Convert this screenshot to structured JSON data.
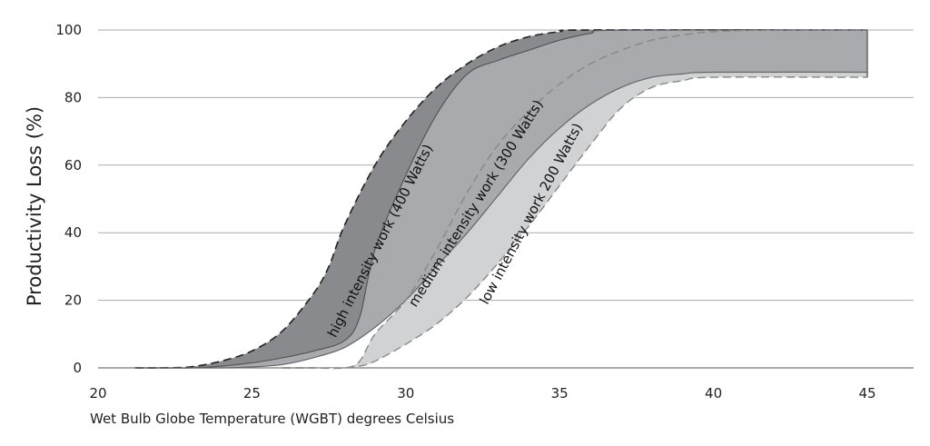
{
  "chart_data": {
    "type": "area",
    "xlabel": "Wet Bulb Globe Temperature (WGBT) degrees Celsius",
    "ylabel": "Productivity Loss (%)",
    "xlim": [
      20,
      46.5
    ],
    "ylim": [
      0,
      100
    ],
    "xticks": [
      {
        "value": 20,
        "label": "20"
      },
      {
        "value": 25,
        "label": "25"
      },
      {
        "value": 30,
        "label": "30"
      },
      {
        "value": 35,
        "label": "35"
      },
      {
        "value": 40,
        "label": "40"
      },
      {
        "value": 45,
        "label": "45"
      }
    ],
    "yticks": [
      {
        "value": 0,
        "label": "0"
      },
      {
        "value": 20,
        "label": "20"
      },
      {
        "value": 40,
        "label": "40"
      },
      {
        "value": 60,
        "label": "60"
      },
      {
        "value": 80,
        "label": "80"
      },
      {
        "value": 100,
        "label": "100"
      }
    ],
    "grid": "horizontal",
    "bands": [
      {
        "name": "high intensity work (400 Watts)",
        "fill": "#888a8d",
        "upper": [
          [
            21.2,
            0
          ],
          [
            22,
            0
          ],
          [
            23,
            0.3
          ],
          [
            24,
            2
          ],
          [
            25,
            5
          ],
          [
            26,
            11
          ],
          [
            27,
            22
          ],
          [
            27.5,
            30
          ],
          [
            28,
            42
          ],
          [
            29,
            60
          ],
          [
            30,
            73
          ],
          [
            31,
            83
          ],
          [
            32,
            90
          ],
          [
            33,
            95
          ],
          [
            34,
            98
          ],
          [
            35,
            99.5
          ],
          [
            36,
            100
          ],
          [
            45,
            100
          ]
        ],
        "lower": [
          [
            21.2,
            0
          ],
          [
            22,
            0
          ],
          [
            23,
            0
          ],
          [
            24,
            0.5
          ],
          [
            25,
            1.5
          ],
          [
            26,
            3
          ],
          [
            27,
            5
          ],
          [
            28,
            8
          ],
          [
            28.5,
            15
          ],
          [
            29,
            35
          ],
          [
            30,
            57
          ],
          [
            31,
            75
          ],
          [
            32,
            87
          ],
          [
            33,
            91
          ],
          [
            34,
            94
          ],
          [
            35,
            97
          ],
          [
            36,
            99
          ],
          [
            37,
            100
          ],
          [
            45,
            100
          ]
        ],
        "label_pos": {
          "x": 29.3,
          "y": 37
        },
        "label_angle": -63
      },
      {
        "name": "medium intensity work (300 Watts)",
        "fill": "#a8aaad",
        "upper": [
          [
            22,
            0
          ],
          [
            23,
            0
          ],
          [
            24,
            0.5
          ],
          [
            25,
            1.5
          ],
          [
            26,
            3
          ],
          [
            27,
            5
          ],
          [
            28,
            8
          ],
          [
            28.5,
            15
          ],
          [
            29,
            35
          ],
          [
            30,
            57
          ],
          [
            31,
            75
          ],
          [
            32,
            87
          ],
          [
            33,
            91
          ],
          [
            34,
            94
          ],
          [
            35,
            97
          ],
          [
            36,
            99
          ],
          [
            37,
            100
          ],
          [
            45,
            100
          ]
        ],
        "lower": [
          [
            22,
            0
          ],
          [
            23,
            0
          ],
          [
            24,
            0
          ],
          [
            25,
            0.3
          ],
          [
            26,
            1
          ],
          [
            27,
            3
          ],
          [
            28,
            6
          ],
          [
            29,
            12
          ],
          [
            30,
            20
          ],
          [
            31,
            30
          ],
          [
            32,
            40
          ],
          [
            33,
            51
          ],
          [
            34,
            62
          ],
          [
            35,
            71
          ],
          [
            36,
            78
          ],
          [
            37,
            83
          ],
          [
            38,
            86
          ],
          [
            39,
            87
          ],
          [
            40,
            87.5
          ],
          [
            45,
            87.5
          ]
        ],
        "label_pos": {
          "x": 32.4,
          "y": 48
        },
        "label_angle": -58
      },
      {
        "name": "low intensity work 200 Watts)",
        "fill": "#d0d2d4",
        "upper": [
          [
            26,
            0
          ],
          [
            27,
            0
          ],
          [
            28,
            0
          ],
          [
            28.5,
            2
          ],
          [
            29,
            10
          ],
          [
            30,
            20
          ],
          [
            31,
            35
          ],
          [
            32,
            52
          ],
          [
            33,
            66
          ],
          [
            34,
            76
          ],
          [
            35,
            84
          ],
          [
            36,
            90
          ],
          [
            37,
            94
          ],
          [
            38,
            97
          ],
          [
            39,
            98.5
          ],
          [
            40,
            99.5
          ],
          [
            42,
            100
          ],
          [
            45,
            100
          ]
        ],
        "lower": [
          [
            26,
            0
          ],
          [
            27,
            0
          ],
          [
            28,
            0
          ],
          [
            28.5,
            0.5
          ],
          [
            29,
            2
          ],
          [
            30,
            7
          ],
          [
            31,
            13
          ],
          [
            32,
            21
          ],
          [
            33,
            31
          ],
          [
            34,
            42
          ],
          [
            35,
            54
          ],
          [
            36,
            66
          ],
          [
            37,
            77
          ],
          [
            38,
            83
          ],
          [
            39,
            85
          ],
          [
            40,
            86
          ],
          [
            45,
            86
          ]
        ],
        "label_pos": {
          "x": 34.2,
          "y": 45
        },
        "label_angle": -62
      }
    ],
    "extra_band": {
      "fill": "#e6e7e8",
      "upper": [
        [
          27,
          0
        ],
        [
          28,
          0
        ],
        [
          28.5,
          1.5
        ],
        [
          29,
          3
        ],
        [
          29.5,
          5
        ],
        [
          30,
          7
        ],
        [
          30.5,
          12
        ],
        [
          31,
          30
        ],
        [
          32,
          40
        ],
        [
          33,
          51
        ],
        [
          34,
          62
        ],
        [
          35,
          71
        ],
        [
          36,
          78
        ],
        [
          37,
          83
        ],
        [
          38,
          86
        ],
        [
          39,
          87
        ],
        [
          40,
          87.5
        ],
        [
          45,
          87.5
        ]
      ],
      "lower": [
        [
          27,
          0
        ],
        [
          28,
          0
        ],
        [
          28.5,
          0.5
        ],
        [
          29,
          2
        ],
        [
          30,
          7
        ],
        [
          31,
          13
        ],
        [
          32,
          21
        ],
        [
          33,
          31
        ],
        [
          34,
          42
        ],
        [
          35,
          54
        ],
        [
          36,
          66
        ],
        [
          37,
          77
        ],
        [
          38,
          83
        ],
        [
          39,
          85
        ],
        [
          40,
          86
        ],
        [
          45,
          86
        ]
      ]
    }
  }
}
